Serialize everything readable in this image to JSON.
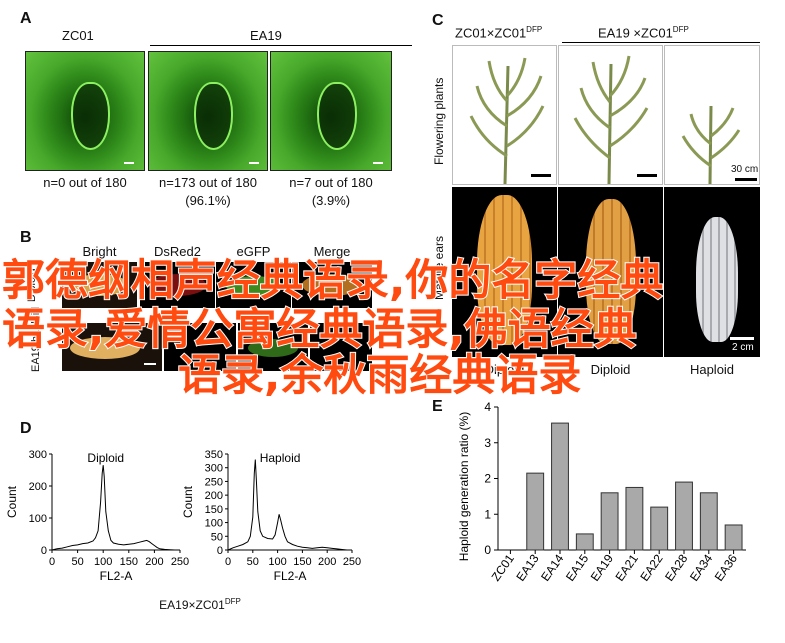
{
  "panelA": {
    "letter": "A",
    "groups": [
      "ZC01",
      "EA19"
    ],
    "captions": [
      "n=0 out of 180",
      "n=173 out of 180",
      "(96.1%)",
      "n=7 out of 180",
      "(3.9%)"
    ]
  },
  "panelB": {
    "letter": "B",
    "columns": [
      "Bright",
      "DsRed2",
      "eGFP",
      "Merge"
    ],
    "row_label_1": "Diploid",
    "row_label_2": "EA19 haploid"
  },
  "panelC": {
    "letter": "C",
    "header_left": "ZC01×ZC01",
    "header_right": "EA19 ×ZC01",
    "dfp": "DFP",
    "row1": "Flowering plants",
    "row2": "Mature ears",
    "scale1": "30 cm",
    "scale2": "2 cm",
    "bottom_labels": [
      "Diploid",
      "Diploid",
      "Haploid"
    ]
  },
  "watermark": {
    "lines": [
      "郭德纲相声经典语录,你的名字经典",
      "语录,爱情公寓经典语录,佛语经典",
      "语录,余秋雨经典语录"
    ]
  },
  "panelD": {
    "letter": "D",
    "footer": "EA19×ZC01",
    "footer_dfp": "DFP",
    "charts": [
      {
        "title": "Diploid",
        "ylabel": "Count",
        "xlabel": "FL2-A"
      },
      {
        "title": "Haploid",
        "ylabel": "Count",
        "xlabel": "FL2-A"
      }
    ]
  },
  "panelE": {
    "letter": "E",
    "ylabel": "Haploid generation ratio (%)"
  },
  "chart_data": [
    {
      "type": "line",
      "title": "Diploid",
      "xlabel": "FL2-A",
      "ylabel": "Count",
      "xlim": [
        0,
        250
      ],
      "ylim": [
        0,
        300
      ],
      "xticks": [
        0,
        50,
        100,
        150,
        200,
        250
      ],
      "yticks": [
        0,
        100,
        200,
        300
      ],
      "x": [
        0,
        10,
        20,
        30,
        40,
        50,
        60,
        70,
        80,
        85,
        90,
        95,
        98,
        100,
        102,
        105,
        110,
        115,
        120,
        130,
        140,
        150,
        160,
        170,
        180,
        185,
        190,
        195,
        200,
        205,
        210,
        220,
        230,
        240,
        250
      ],
      "y": [
        0,
        4,
        6,
        10,
        14,
        16,
        20,
        22,
        28,
        38,
        60,
        150,
        240,
        265,
        230,
        120,
        60,
        30,
        22,
        18,
        16,
        18,
        20,
        24,
        28,
        30,
        26,
        20,
        14,
        8,
        4,
        2,
        1,
        0,
        0
      ]
    },
    {
      "type": "line",
      "title": "Haploid",
      "xlabel": "FL2-A",
      "ylabel": "Count",
      "xlim": [
        0,
        250
      ],
      "ylim": [
        0,
        350
      ],
      "xticks": [
        0,
        50,
        100,
        150,
        200,
        250
      ],
      "yticks": [
        0,
        50,
        100,
        150,
        200,
        250,
        300,
        350
      ],
      "x": [
        0,
        10,
        20,
        30,
        40,
        45,
        50,
        53,
        55,
        57,
        60,
        65,
        70,
        80,
        90,
        95,
        100,
        103,
        106,
        110,
        115,
        120,
        130,
        140,
        150,
        160,
        170,
        180,
        190,
        200,
        210,
        220,
        230,
        240,
        250
      ],
      "y": [
        0,
        8,
        14,
        20,
        30,
        50,
        120,
        280,
        330,
        260,
        140,
        70,
        50,
        42,
        40,
        55,
        100,
        130,
        110,
        80,
        50,
        30,
        20,
        14,
        10,
        8,
        6,
        8,
        10,
        8,
        6,
        4,
        2,
        0,
        0
      ]
    },
    {
      "type": "bar",
      "ylabel": "Haploid generation ratio (%)",
      "categories": [
        "ZC01",
        "EA13",
        "EA14",
        "EA15",
        "EA19",
        "EA21",
        "EA22",
        "EA28",
        "EA34",
        "EA36"
      ],
      "values": [
        0,
        2.15,
        3.55,
        0.45,
        1.6,
        1.75,
        1.2,
        1.9,
        1.6,
        0.7
      ],
      "ylim": [
        0,
        4
      ],
      "yticks": [
        0,
        1,
        2,
        3,
        4
      ]
    }
  ]
}
